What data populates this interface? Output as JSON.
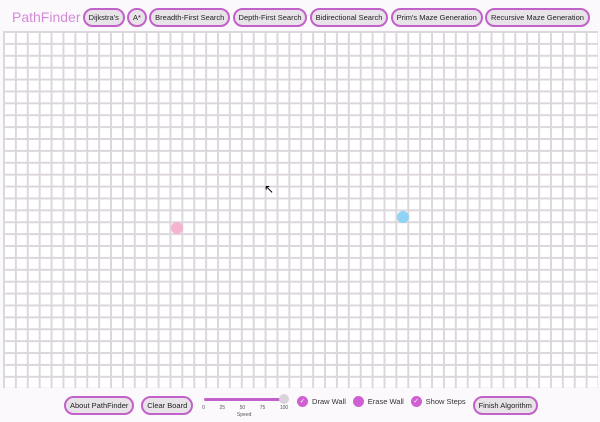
{
  "app_title": "PathFinder",
  "algorithms": [
    "Dijkstra's",
    "A*",
    "Breadth-First Search",
    "Depth-First Search",
    "Bidirectional Search",
    "Prim's Maze Generation",
    "Recursive Maze Generation"
  ],
  "grid": {
    "rows": 30,
    "cols": 50,
    "start": {
      "row": 16,
      "col": 14,
      "color": "#f4b3cf"
    },
    "target": {
      "row": 15,
      "col": 33,
      "color": "#8fd3f7"
    }
  },
  "bottom": {
    "about": "About PathFinder",
    "clear": "Clear Board",
    "speed": {
      "label": "Speed",
      "value": 100,
      "ticks": [
        "0",
        "25",
        "50",
        "75",
        "100"
      ]
    },
    "draw_wall": {
      "label": "Draw Wall",
      "checked": true
    },
    "erase_wall": {
      "label": "Erase Wall",
      "checked": false
    },
    "show_steps": {
      "label": "Show Steps",
      "checked": true
    },
    "finish": "Finish Algorithm"
  },
  "colors": {
    "accent": "#c261c9"
  }
}
